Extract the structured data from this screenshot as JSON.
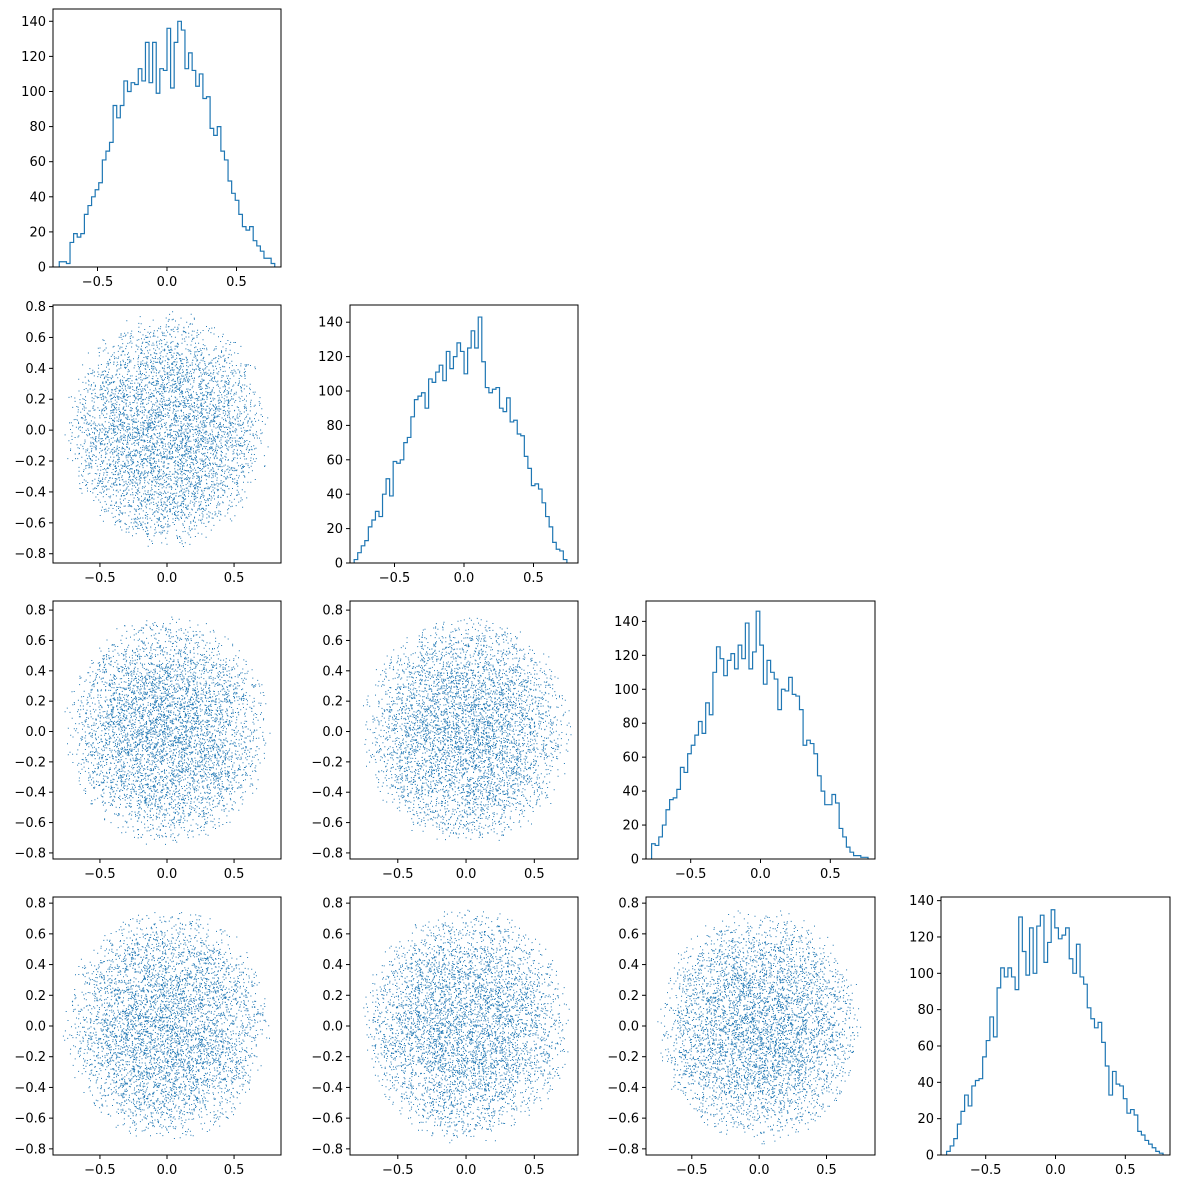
{
  "chart_data": {
    "type": "corner-plot",
    "grid_size": 4,
    "colors": {
      "series": "#1f77b4"
    },
    "title": "",
    "panels": [
      {
        "row": 0,
        "col": 0,
        "type": "histogram",
        "histtype": "step",
        "xlim": [
          -0.82,
          0.82
        ],
        "ylim": [
          0,
          147
        ],
        "xticks": [
          {
            "v": -0.5,
            "label": "−0.5"
          },
          {
            "v": 0.0,
            "label": "0.0"
          },
          {
            "v": 0.5,
            "label": "0.5"
          }
        ],
        "yticks": [
          {
            "v": 0,
            "label": "0"
          },
          {
            "v": 20,
            "label": "20"
          },
          {
            "v": 40,
            "label": "40"
          },
          {
            "v": 60,
            "label": "60"
          },
          {
            "v": 80,
            "label": "80"
          },
          {
            "v": 100,
            "label": "100"
          },
          {
            "v": 120,
            "label": "120"
          },
          {
            "v": 140,
            "label": "140"
          }
        ],
        "bin_range": [
          -0.775,
          0.775
        ],
        "counts": [
          3,
          3,
          2,
          14,
          19,
          17,
          19,
          30,
          35,
          40,
          44,
          48,
          61,
          66,
          71,
          92,
          85,
          92,
          106,
          100,
          105,
          104,
          113,
          106,
          128,
          105,
          128,
          99,
          113,
          112,
          136,
          102,
          128,
          140,
          135,
          113,
          122,
          112,
          103,
          110,
          96,
          97,
          79,
          75,
          80,
          66,
          61,
          49,
          42,
          38,
          30,
          23,
          21,
          23,
          15,
          12,
          9,
          5,
          5,
          2
        ]
      },
      {
        "row": 1,
        "col": 1,
        "type": "histogram",
        "histtype": "step",
        "xlim": [
          -0.82,
          0.82
        ],
        "ylim": [
          0,
          150
        ],
        "xticks": [
          {
            "v": -0.5,
            "label": "−0.5"
          },
          {
            "v": 0.0,
            "label": "0.0"
          },
          {
            "v": 0.5,
            "label": "0.5"
          }
        ],
        "yticks": [
          {
            "v": 0,
            "label": "0"
          },
          {
            "v": 20,
            "label": "20"
          },
          {
            "v": 40,
            "label": "40"
          },
          {
            "v": 60,
            "label": "60"
          },
          {
            "v": 80,
            "label": "80"
          },
          {
            "v": 100,
            "label": "100"
          },
          {
            "v": 120,
            "label": "120"
          },
          {
            "v": 140,
            "label": "140"
          }
        ],
        "bin_range": [
          -0.79,
          0.74
        ],
        "counts": [
          2,
          6,
          10,
          13,
          21,
          25,
          30,
          27,
          40,
          49,
          39,
          59,
          58,
          60,
          70,
          73,
          85,
          95,
          97,
          99,
          90,
          107,
          105,
          111,
          115,
          106,
          123,
          113,
          120,
          128,
          123,
          110,
          125,
          135,
          125,
          143,
          117,
          102,
          99,
          101,
          102,
          90,
          88,
          96,
          82,
          83,
          75,
          74,
          62,
          55,
          45,
          46,
          43,
          35,
          27,
          21,
          12,
          8,
          7,
          2
        ]
      },
      {
        "row": 2,
        "col": 2,
        "type": "histogram",
        "histtype": "step",
        "xlim": [
          -0.82,
          0.82
        ],
        "ylim": [
          0,
          152
        ],
        "xticks": [
          {
            "v": -0.5,
            "label": "−0.5"
          },
          {
            "v": 0.0,
            "label": "0.0"
          },
          {
            "v": 0.5,
            "label": "0.5"
          }
        ],
        "yticks": [
          {
            "v": 0,
            "label": "0"
          },
          {
            "v": 20,
            "label": "20"
          },
          {
            "v": 40,
            "label": "40"
          },
          {
            "v": 60,
            "label": "60"
          },
          {
            "v": 80,
            "label": "80"
          },
          {
            "v": 100,
            "label": "100"
          },
          {
            "v": 120,
            "label": "120"
          },
          {
            "v": 140,
            "label": "140"
          }
        ],
        "bin_range": [
          -0.78,
          0.77
        ],
        "counts": [
          9,
          8,
          13,
          20,
          29,
          35,
          36,
          41,
          54,
          51,
          62,
          67,
          73,
          81,
          74,
          92,
          85,
          110,
          125,
          118,
          108,
          117,
          121,
          112,
          126,
          118,
          139,
          112,
          122,
          146,
          126,
          103,
          117,
          110,
          106,
          88,
          100,
          99,
          107,
          97,
          96,
          88,
          67,
          70,
          68,
          62,
          49,
          40,
          32,
          32,
          38,
          33,
          18,
          13,
          7,
          4,
          2,
          2,
          1,
          1
        ]
      },
      {
        "row": 3,
        "col": 3,
        "type": "histogram",
        "histtype": "step",
        "xlim": [
          -0.82,
          0.82
        ],
        "ylim": [
          0,
          142
        ],
        "xticks": [
          {
            "v": -0.5,
            "label": "−0.5"
          },
          {
            "v": 0.0,
            "label": "0.0"
          },
          {
            "v": 0.5,
            "label": "0.5"
          }
        ],
        "yticks": [
          {
            "v": 0,
            "label": "0"
          },
          {
            "v": 20,
            "label": "20"
          },
          {
            "v": 40,
            "label": "40"
          },
          {
            "v": 60,
            "label": "60"
          },
          {
            "v": 80,
            "label": "80"
          },
          {
            "v": 100,
            "label": "100"
          },
          {
            "v": 120,
            "label": "120"
          },
          {
            "v": 140,
            "label": "140"
          }
        ],
        "bin_range": [
          -0.78,
          0.77
        ],
        "counts": [
          2,
          5,
          9,
          17,
          24,
          33,
          27,
          38,
          41,
          42,
          54,
          63,
          76,
          65,
          92,
          103,
          98,
          103,
          98,
          91,
          131,
          112,
          99,
          125,
          100,
          126,
          132,
          106,
          117,
          135,
          125,
          119,
          121,
          125,
          108,
          100,
          116,
          98,
          94,
          81,
          75,
          70,
          73,
          62,
          49,
          33,
          46,
          39,
          38,
          31,
          23,
          25,
          22,
          13,
          11,
          8,
          6,
          4,
          2,
          1
        ]
      },
      {
        "row": 1,
        "col": 0,
        "type": "scatter",
        "n_points": 5000,
        "marker": "pixel",
        "xlim": [
          -0.85,
          0.85
        ],
        "ylim": [
          -0.86,
          0.81
        ],
        "xticks": [
          {
            "v": -0.5,
            "label": "−0.5"
          },
          {
            "v": 0.0,
            "label": "0.0"
          },
          {
            "v": 0.5,
            "label": "0.5"
          }
        ],
        "yticks": [
          {
            "v": 0.8,
            "label": "0.8"
          },
          {
            "v": 0.6,
            "label": "0.6"
          },
          {
            "v": 0.4,
            "label": "0.4"
          },
          {
            "v": 0.2,
            "label": "0.2"
          },
          {
            "v": 0.0,
            "label": "0.0"
          },
          {
            "v": -0.2,
            "label": "−0.2"
          },
          {
            "v": -0.4,
            "label": "−0.4"
          },
          {
            "v": -0.6,
            "label": "−0.6"
          },
          {
            "v": -0.8,
            "label": "−0.8"
          }
        ]
      },
      {
        "row": 2,
        "col": 0,
        "type": "scatter",
        "n_points": 5000,
        "marker": "pixel",
        "xlim": [
          -0.85,
          0.85
        ],
        "ylim": [
          -0.84,
          0.86
        ],
        "xticks": [
          {
            "v": -0.5,
            "label": "−0.5"
          },
          {
            "v": 0.0,
            "label": "0.0"
          },
          {
            "v": 0.5,
            "label": "0.5"
          }
        ],
        "yticks": [
          {
            "v": 0.8,
            "label": "0.8"
          },
          {
            "v": 0.6,
            "label": "0.6"
          },
          {
            "v": 0.4,
            "label": "0.4"
          },
          {
            "v": 0.2,
            "label": "0.2"
          },
          {
            "v": 0.0,
            "label": "0.0"
          },
          {
            "v": -0.2,
            "label": "−0.2"
          },
          {
            "v": -0.4,
            "label": "−0.4"
          },
          {
            "v": -0.6,
            "label": "−0.6"
          },
          {
            "v": -0.8,
            "label": "−0.8"
          }
        ]
      },
      {
        "row": 2,
        "col": 1,
        "type": "scatter",
        "n_points": 5000,
        "marker": "pixel",
        "xlim": [
          -0.85,
          0.82
        ],
        "ylim": [
          -0.84,
          0.86
        ],
        "xticks": [
          {
            "v": -0.5,
            "label": "−0.5"
          },
          {
            "v": 0.0,
            "label": "0.0"
          },
          {
            "v": 0.5,
            "label": "0.5"
          }
        ],
        "yticks": [
          {
            "v": 0.8,
            "label": "0.8"
          },
          {
            "v": 0.6,
            "label": "0.6"
          },
          {
            "v": 0.4,
            "label": "0.4"
          },
          {
            "v": 0.2,
            "label": "0.2"
          },
          {
            "v": 0.0,
            "label": "0.0"
          },
          {
            "v": -0.2,
            "label": "−0.2"
          },
          {
            "v": -0.4,
            "label": "−0.4"
          },
          {
            "v": -0.6,
            "label": "−0.6"
          },
          {
            "v": -0.8,
            "label": "−0.8"
          }
        ]
      },
      {
        "row": 3,
        "col": 0,
        "type": "scatter",
        "n_points": 5000,
        "marker": "pixel",
        "xlim": [
          -0.85,
          0.85
        ],
        "ylim": [
          -0.84,
          0.84
        ],
        "xticks": [
          {
            "v": -0.5,
            "label": "−0.5"
          },
          {
            "v": 0.0,
            "label": "0.0"
          },
          {
            "v": 0.5,
            "label": "0.5"
          }
        ],
        "yticks": [
          {
            "v": 0.8,
            "label": "0.8"
          },
          {
            "v": 0.6,
            "label": "0.6"
          },
          {
            "v": 0.4,
            "label": "0.4"
          },
          {
            "v": 0.2,
            "label": "0.2"
          },
          {
            "v": 0.0,
            "label": "0.0"
          },
          {
            "v": -0.2,
            "label": "−0.2"
          },
          {
            "v": -0.4,
            "label": "−0.4"
          },
          {
            "v": -0.6,
            "label": "−0.6"
          },
          {
            "v": -0.8,
            "label": "−0.8"
          }
        ]
      },
      {
        "row": 3,
        "col": 1,
        "type": "scatter",
        "n_points": 5000,
        "marker": "pixel",
        "xlim": [
          -0.85,
          0.82
        ],
        "ylim": [
          -0.84,
          0.84
        ],
        "xticks": [
          {
            "v": -0.5,
            "label": "−0.5"
          },
          {
            "v": 0.0,
            "label": "0.0"
          },
          {
            "v": 0.5,
            "label": "0.5"
          }
        ],
        "yticks": [
          {
            "v": 0.8,
            "label": "0.8"
          },
          {
            "v": 0.6,
            "label": "0.6"
          },
          {
            "v": 0.4,
            "label": "0.4"
          },
          {
            "v": 0.2,
            "label": "0.2"
          },
          {
            "v": 0.0,
            "label": "0.0"
          },
          {
            "v": -0.2,
            "label": "−0.2"
          },
          {
            "v": -0.4,
            "label": "−0.4"
          },
          {
            "v": -0.6,
            "label": "−0.6"
          },
          {
            "v": -0.8,
            "label": "−0.8"
          }
        ]
      },
      {
        "row": 3,
        "col": 2,
        "type": "scatter",
        "n_points": 5000,
        "marker": "pixel",
        "xlim": [
          -0.84,
          0.86
        ],
        "ylim": [
          -0.84,
          0.84
        ],
        "xticks": [
          {
            "v": -0.5,
            "label": "−0.5"
          },
          {
            "v": 0.0,
            "label": "0.0"
          },
          {
            "v": 0.5,
            "label": "0.5"
          }
        ],
        "yticks": [
          {
            "v": 0.8,
            "label": "0.8"
          },
          {
            "v": 0.6,
            "label": "0.6"
          },
          {
            "v": 0.4,
            "label": "0.4"
          },
          {
            "v": 0.2,
            "label": "0.2"
          },
          {
            "v": 0.0,
            "label": "0.0"
          },
          {
            "v": -0.2,
            "label": "−0.2"
          },
          {
            "v": -0.4,
            "label": "−0.4"
          },
          {
            "v": -0.6,
            "label": "−0.6"
          },
          {
            "v": -0.8,
            "label": "−0.8"
          }
        ]
      }
    ]
  }
}
